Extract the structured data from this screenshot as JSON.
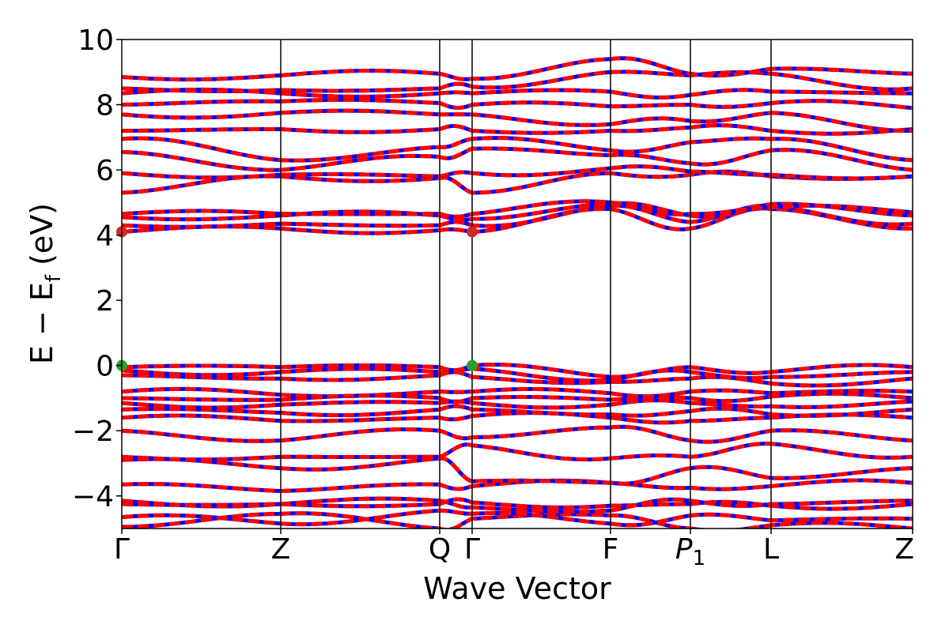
{
  "chart_data": {
    "type": "line",
    "title": "",
    "xlabel": "Wave Vector",
    "ylabel_main": "E − E",
    "ylabel_sub": "f",
    "ylabel_unit": " (eV)",
    "ylim": [
      -5,
      10
    ],
    "yticks": [
      "−4",
      "−2",
      "0",
      "2",
      "4",
      "6",
      "8",
      "10"
    ],
    "ytick_values": [
      -4,
      -2,
      0,
      2,
      4,
      6,
      8,
      10
    ],
    "grid": false,
    "legend": "none",
    "xlim": [
      0,
      1
    ],
    "kpoints": [
      {
        "label": "Γ",
        "pos": 0.0
      },
      {
        "label": "Z",
        "pos": 0.201
      },
      {
        "label": "Q",
        "pos": 0.402
      },
      {
        "label": "Γ",
        "pos": 0.443
      },
      {
        "label": "F",
        "pos": 0.618
      },
      {
        "label": "P",
        "sub": "1",
        "pos": 0.719
      },
      {
        "label": "L",
        "pos": 0.821
      },
      {
        "label": "Z",
        "pos": 1.0
      }
    ],
    "series_styles": [
      {
        "color": "#0000ff",
        "style": "solid"
      },
      {
        "color": "#ff0000",
        "style": "dashed"
      }
    ],
    "bands": [
      {
        "y": [
          -4.95,
          -4.55,
          -5.0,
          -4.7,
          -4.6,
          -5.0,
          -4.9,
          -5.0
        ]
      },
      {
        "y": [
          -4.65,
          -4.85,
          -4.45,
          -4.55,
          -4.85,
          -4.6,
          -4.75,
          -4.7
        ]
      },
      {
        "y": [
          -4.25,
          -4.25,
          -4.25,
          -4.2,
          -4.3,
          -4.25,
          -4.3,
          -4.25
        ]
      },
      {
        "y": [
          -4.15,
          -4.25,
          -4.15,
          -4.35,
          -4.45,
          -4.15,
          -4.25,
          -4.15
        ]
      },
      {
        "y": [
          -3.65,
          -3.85,
          -3.65,
          -3.7,
          -3.6,
          -3.75,
          -3.7,
          -3.6
        ]
      },
      {
        "y": [
          -2.9,
          -3.15,
          -2.85,
          -3.55,
          -3.6,
          -3.15,
          -3.45,
          -3.15
        ]
      },
      {
        "y": [
          -2.8,
          -2.8,
          -2.8,
          -2.45,
          -2.85,
          -2.8,
          -2.4,
          -2.8
        ]
      },
      {
        "y": [
          -2.0,
          -2.3,
          -2.0,
          -2.2,
          -1.9,
          -2.3,
          -2.0,
          -2.3
        ]
      },
      {
        "y": [
          -1.6,
          -1.7,
          -1.6,
          -1.55,
          -1.6,
          -1.7,
          -1.6,
          -1.6
        ]
      },
      {
        "y": [
          -1.35,
          -1.45,
          -1.35,
          -1.35,
          -1.5,
          -1.4,
          -1.5,
          -1.35
        ]
      },
      {
        "y": [
          -1.15,
          -1.2,
          -1.15,
          -1.15,
          -1.2,
          -1.15,
          -1.25,
          -1.1
        ]
      },
      {
        "y": [
          -1.0,
          -1.05,
          -1.0,
          -1.0,
          -1.05,
          -1.0,
          -0.95,
          -1.0
        ]
      },
      {
        "y": [
          -0.8,
          -0.9,
          -0.8,
          -0.8,
          -0.85,
          -0.8,
          -0.85,
          -0.8
        ]
      },
      {
        "y": [
          -0.3,
          -0.4,
          -0.3,
          -0.35,
          -0.5,
          -0.4,
          -0.55,
          -0.4
        ]
      },
      {
        "y": [
          -0.15,
          -0.2,
          -0.2,
          -0.1,
          -0.45,
          -0.2,
          -0.35,
          -0.2
        ]
      },
      {
        "y": [
          -0.05,
          -0.05,
          -0.05,
          -0.0,
          -0.35,
          -0.05,
          -0.2,
          -0.05
        ]
      },
      {
        "y": [
          4.1,
          4.2,
          4.15,
          4.1,
          4.8,
          4.2,
          4.8,
          4.2
        ]
      },
      {
        "y": [
          4.3,
          4.35,
          4.3,
          4.3,
          4.9,
          4.4,
          4.9,
          4.35
        ]
      },
      {
        "y": [
          4.55,
          4.6,
          4.6,
          4.5,
          4.95,
          4.6,
          4.95,
          4.6
        ]
      },
      {
        "y": [
          4.65,
          4.65,
          4.65,
          4.65,
          5.0,
          4.65,
          4.85,
          4.7
        ]
      },
      {
        "y": [
          5.3,
          5.8,
          5.75,
          5.3,
          5.9,
          5.85,
          5.8,
          5.8
        ]
      },
      {
        "y": [
          5.9,
          5.85,
          5.8,
          5.9,
          6.05,
          5.95,
          5.85,
          5.8
        ]
      },
      {
        "y": [
          6.55,
          6.0,
          6.4,
          6.65,
          6.45,
          6.2,
          6.6,
          6.0
        ]
      },
      {
        "y": [
          6.95,
          6.3,
          6.7,
          6.95,
          6.6,
          6.85,
          6.95,
          6.3
        ]
      },
      {
        "y": [
          7.2,
          7.25,
          7.25,
          7.2,
          7.2,
          7.3,
          7.2,
          7.25
        ]
      },
      {
        "y": [
          7.7,
          7.75,
          7.7,
          7.7,
          7.4,
          7.5,
          7.75,
          7.2
        ]
      },
      {
        "y": [
          8.0,
          8.1,
          8.05,
          8.0,
          7.95,
          8.0,
          8.05,
          7.9
        ]
      },
      {
        "y": [
          8.35,
          8.35,
          8.35,
          8.35,
          8.4,
          8.3,
          8.4,
          8.35
        ]
      },
      {
        "y": [
          8.5,
          8.45,
          8.5,
          8.55,
          9.0,
          8.9,
          8.95,
          8.5
        ]
      },
      {
        "y": [
          8.85,
          8.9,
          8.95,
          8.8,
          9.4,
          8.95,
          9.1,
          8.95
        ]
      }
    ],
    "markers": [
      {
        "x": 0.0,
        "y": 4.1,
        "color": "#d62728"
      },
      {
        "x": 0.443,
        "y": 4.1,
        "color": "#d62728"
      },
      {
        "x": 0.0,
        "y": 0.0,
        "color": "#2ca02c"
      },
      {
        "x": 0.443,
        "y": 0.0,
        "color": "#2ca02c"
      }
    ]
  }
}
